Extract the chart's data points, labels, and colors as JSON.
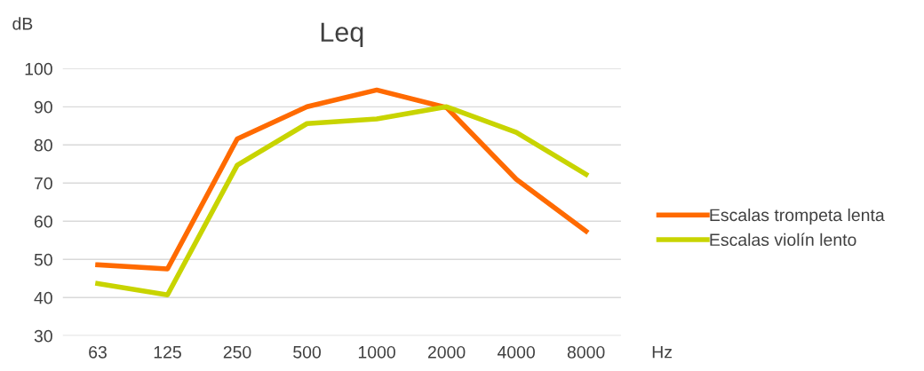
{
  "chart_data": {
    "type": "line",
    "title": "Leq",
    "ylabel": "dB",
    "xlabel": "Hz",
    "categories": [
      "63",
      "125",
      "250",
      "500",
      "1000",
      "2000",
      "4000",
      "8000"
    ],
    "series": [
      {
        "name": "Escalas trompeta lenta",
        "color": "#ff6a00",
        "values": [
          48.6,
          47.5,
          81.6,
          90.0,
          94.4,
          89.8,
          71.0,
          57.4
        ]
      },
      {
        "name": "Escalas violín lento",
        "color": "#c8d400",
        "values": [
          43.7,
          40.7,
          74.7,
          85.6,
          86.8,
          90.0,
          83.3,
          72.3
        ]
      }
    ],
    "ylim": [
      30,
      100
    ],
    "yticks": [
      30,
      40,
      50,
      60,
      70,
      80,
      90,
      100
    ],
    "grid": "y",
    "legend": "right",
    "marker": "none",
    "line_style": "solid"
  }
}
